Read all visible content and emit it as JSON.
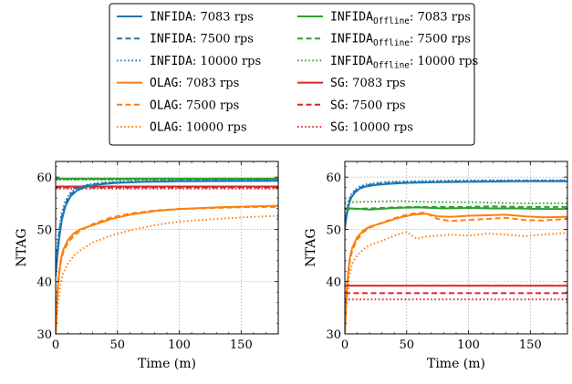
{
  "colors": {
    "INFIDA": "#1f77b4",
    "INFIDA_Offline": "#2ca02c",
    "OLAG": "#ff7f0e",
    "SG": "#d62728",
    "grid": "#b0b0b0",
    "frame": "#000000"
  },
  "legend": {
    "placement": "top-center",
    "entries": [
      {
        "algo": "INFIDA",
        "sub": "",
        "rate": ": 7083 rps",
        "style": "solid",
        "color_key": "INFIDA"
      },
      {
        "algo": "INFIDA",
        "sub": "Offline",
        "rate": ": 7083 rps",
        "style": "solid",
        "color_key": "INFIDA_Offline"
      },
      {
        "algo": "INFIDA",
        "sub": "",
        "rate": ": 7500 rps",
        "style": "dashed",
        "color_key": "INFIDA"
      },
      {
        "algo": "INFIDA",
        "sub": "Offline",
        "rate": ": 7500 rps",
        "style": "dashed",
        "color_key": "INFIDA_Offline"
      },
      {
        "algo": "INFIDA",
        "sub": "",
        "rate": ": 10000 rps",
        "style": "dotted",
        "color_key": "INFIDA"
      },
      {
        "algo": "INFIDA",
        "sub": "Offline",
        "rate": ": 10000 rps",
        "style": "dotted",
        "color_key": "INFIDA_Offline"
      },
      {
        "algo": "OLAG",
        "sub": "",
        "rate": ": 7083 rps",
        "style": "solid",
        "color_key": "OLAG"
      },
      {
        "algo": "SG",
        "sub": "",
        "rate": ": 7083 rps",
        "style": "solid",
        "color_key": "SG"
      },
      {
        "algo": "OLAG",
        "sub": "",
        "rate": ": 7500 rps",
        "style": "dashed",
        "color_key": "OLAG"
      },
      {
        "algo": "SG",
        "sub": "",
        "rate": ": 7500 rps",
        "style": "dashed",
        "color_key": "SG"
      },
      {
        "algo": "OLAG",
        "sub": "",
        "rate": ": 10000 rps",
        "style": "dotted",
        "color_key": "OLAG"
      },
      {
        "algo": "SG",
        "sub": "",
        "rate": ": 10000 rps",
        "style": "dotted",
        "color_key": "SG"
      }
    ]
  },
  "chart_data": [
    {
      "type": "line",
      "xlabel": "Time (m)",
      "ylabel": "NTAG",
      "xlim": [
        0,
        180
      ],
      "ylim": [
        30,
        63
      ],
      "xticks": [
        0,
        50,
        100,
        150
      ],
      "yticks": [
        30,
        40,
        50,
        60
      ],
      "grid": true,
      "series": [
        {
          "color_key": "INFIDA_Offline",
          "style": "solid",
          "x": [
            0,
            180
          ],
          "y": [
            59.7,
            59.7
          ]
        },
        {
          "color_key": "INFIDA_Offline",
          "style": "dashed",
          "x": [
            0,
            180
          ],
          "y": [
            59.6,
            59.6
          ]
        },
        {
          "color_key": "INFIDA_Offline",
          "style": "dotted",
          "x": [
            0,
            180
          ],
          "y": [
            59.5,
            59.5
          ]
        },
        {
          "color_key": "SG",
          "style": "solid",
          "x": [
            0,
            180
          ],
          "y": [
            58.2,
            58.2
          ]
        },
        {
          "color_key": "SG",
          "style": "dashed",
          "x": [
            0,
            180
          ],
          "y": [
            58.0,
            58.0
          ]
        },
        {
          "color_key": "SG",
          "style": "dotted",
          "x": [
            0,
            180
          ],
          "y": [
            57.8,
            57.8
          ]
        },
        {
          "color_key": "INFIDA",
          "style": "solid",
          "x": [
            0,
            1,
            3,
            5,
            8,
            12,
            17,
            25,
            35,
            50,
            70,
            100,
            140,
            180
          ],
          "y": [
            41.0,
            44.0,
            48.5,
            51.8,
            54.5,
            56.3,
            57.4,
            58.2,
            58.6,
            58.9,
            59.1,
            59.2,
            59.25,
            59.3
          ]
        },
        {
          "color_key": "INFIDA",
          "style": "dashed",
          "x": [
            0,
            1,
            3,
            5,
            8,
            12,
            17,
            25,
            35,
            50,
            70,
            100,
            140,
            180
          ],
          "y": [
            42.0,
            45.0,
            49.5,
            52.5,
            55.0,
            56.7,
            57.7,
            58.4,
            58.8,
            59.0,
            59.15,
            59.25,
            59.3,
            59.3
          ]
        },
        {
          "color_key": "INFIDA",
          "style": "dotted",
          "x": [
            0,
            1,
            3,
            5,
            8,
            12,
            17,
            25,
            35,
            50,
            70,
            100,
            140,
            180
          ],
          "y": [
            43.0,
            46.0,
            50.3,
            53.2,
            55.5,
            57.0,
            57.9,
            58.5,
            58.9,
            59.1,
            59.2,
            59.3,
            59.35,
            59.35
          ]
        },
        {
          "color_key": "OLAG",
          "style": "solid",
          "x": [
            0,
            1,
            2,
            4,
            6,
            10,
            15,
            20,
            30,
            45,
            60,
            80,
            100,
            130,
            160,
            180
          ],
          "y": [
            30.0,
            36.0,
            40.0,
            44.0,
            46.0,
            48.0,
            49.3,
            50.0,
            50.8,
            52.0,
            52.8,
            53.5,
            53.9,
            54.2,
            54.4,
            54.5
          ]
        },
        {
          "color_key": "OLAG",
          "style": "dashed",
          "x": [
            0,
            1,
            2,
            4,
            6,
            10,
            15,
            20,
            30,
            45,
            60,
            80,
            100,
            130,
            160,
            180
          ],
          "y": [
            30.0,
            35.5,
            39.5,
            43.5,
            45.5,
            47.5,
            48.8,
            49.8,
            51.0,
            52.3,
            53.0,
            53.6,
            53.9,
            54.1,
            54.3,
            54.3
          ]
        },
        {
          "color_key": "OLAG",
          "style": "dotted",
          "x": [
            0,
            1,
            2,
            4,
            6,
            10,
            15,
            20,
            30,
            45,
            60,
            80,
            100,
            130,
            160,
            180
          ],
          "y": [
            30.0,
            33.0,
            36.0,
            39.5,
            41.5,
            43.5,
            45.0,
            46.0,
            47.5,
            48.8,
            49.8,
            50.8,
            51.5,
            52.0,
            52.4,
            52.6
          ]
        }
      ]
    },
    {
      "type": "line",
      "xlabel": "Time (m)",
      "ylabel": "NTAG",
      "xlim": [
        0,
        180
      ],
      "ylim": [
        30,
        63
      ],
      "xticks": [
        0,
        50,
        100,
        150
      ],
      "yticks": [
        30,
        40,
        50,
        60
      ],
      "grid": true,
      "series": [
        {
          "color_key": "INFIDA",
          "style": "solid",
          "x": [
            0,
            1,
            3,
            5,
            8,
            12,
            17,
            25,
            35,
            50,
            70,
            100,
            140,
            180
          ],
          "y": [
            50.0,
            52.0,
            54.5,
            56.0,
            57.0,
            57.8,
            58.2,
            58.5,
            58.7,
            58.9,
            59.0,
            59.1,
            59.2,
            59.2
          ]
        },
        {
          "color_key": "INFIDA",
          "style": "dashed",
          "x": [
            0,
            1,
            3,
            5,
            8,
            12,
            17,
            25,
            35,
            50,
            70,
            100,
            140,
            180
          ],
          "y": [
            50.5,
            52.5,
            55.0,
            56.3,
            57.3,
            58.0,
            58.4,
            58.7,
            58.9,
            59.0,
            59.1,
            59.2,
            59.3,
            59.3
          ]
        },
        {
          "color_key": "INFIDA",
          "style": "dotted",
          "x": [
            0,
            1,
            3,
            5,
            8,
            12,
            17,
            25,
            35,
            50,
            70,
            100,
            140,
            180
          ],
          "y": [
            51.0,
            53.0,
            55.5,
            56.6,
            57.5,
            58.2,
            58.6,
            58.9,
            59.1,
            59.2,
            59.3,
            59.4,
            59.4,
            59.4
          ]
        },
        {
          "color_key": "INFIDA_Offline",
          "style": "solid",
          "x": [
            0,
            5,
            20,
            40,
            60,
            80,
            100,
            120,
            140,
            160,
            180
          ],
          "y": [
            54.0,
            54.0,
            53.8,
            54.1,
            54.2,
            54.0,
            54.1,
            54.0,
            54.0,
            53.9,
            53.9
          ]
        },
        {
          "color_key": "INFIDA_Offline",
          "style": "dashed",
          "x": [
            0,
            5,
            20,
            40,
            60,
            80,
            100,
            120,
            140,
            160,
            180
          ],
          "y": [
            53.8,
            53.9,
            54.0,
            54.2,
            54.3,
            54.3,
            54.3,
            54.4,
            54.3,
            54.3,
            54.3
          ]
        },
        {
          "color_key": "INFIDA_Offline",
          "style": "dotted",
          "x": [
            0,
            5,
            20,
            40,
            60,
            80,
            100,
            120,
            140,
            160,
            180
          ],
          "y": [
            55.0,
            55.2,
            55.3,
            55.4,
            55.3,
            55.2,
            55.2,
            55.1,
            55.0,
            55.0,
            55.0
          ]
        },
        {
          "color_key": "OLAG",
          "style": "solid",
          "x": [
            0,
            1,
            2,
            4,
            6,
            10,
            15,
            20,
            30,
            45,
            55,
            65,
            75,
            85,
            100,
            115,
            130,
            145,
            160,
            180
          ],
          "y": [
            30.0,
            36.0,
            40.0,
            44.5,
            46.5,
            48.5,
            49.8,
            50.5,
            51.2,
            52.3,
            52.8,
            53.0,
            52.5,
            52.4,
            52.6,
            52.7,
            52.8,
            52.5,
            52.3,
            52.4
          ]
        },
        {
          "color_key": "OLAG",
          "style": "dashed",
          "x": [
            0,
            1,
            2,
            4,
            6,
            10,
            15,
            20,
            30,
            45,
            55,
            65,
            75,
            85,
            100,
            115,
            130,
            145,
            160,
            180
          ],
          "y": [
            30.0,
            35.5,
            39.5,
            44.0,
            46.0,
            48.0,
            49.5,
            50.3,
            51.3,
            52.5,
            53.0,
            53.2,
            52.0,
            51.6,
            51.8,
            52.0,
            52.2,
            51.8,
            51.7,
            52.0
          ]
        },
        {
          "color_key": "OLAG",
          "style": "dotted",
          "x": [
            0,
            1,
            2,
            4,
            6,
            10,
            15,
            20,
            30,
            40,
            50,
            58,
            65,
            75,
            85,
            100,
            115,
            130,
            145,
            160,
            180
          ],
          "y": [
            30.0,
            34.0,
            37.5,
            41.5,
            43.5,
            45.0,
            46.2,
            47.0,
            47.8,
            48.8,
            49.5,
            48.2,
            48.6,
            48.8,
            49.0,
            48.8,
            49.2,
            49.0,
            48.7,
            49.0,
            49.3
          ]
        },
        {
          "color_key": "SG",
          "style": "solid",
          "x": [
            0,
            180
          ],
          "y": [
            39.2,
            39.2
          ]
        },
        {
          "color_key": "SG",
          "style": "dashed",
          "x": [
            0,
            180
          ],
          "y": [
            37.8,
            37.8
          ]
        },
        {
          "color_key": "SG",
          "style": "dotted",
          "x": [
            0,
            180
          ],
          "y": [
            36.6,
            36.6
          ]
        }
      ]
    }
  ]
}
